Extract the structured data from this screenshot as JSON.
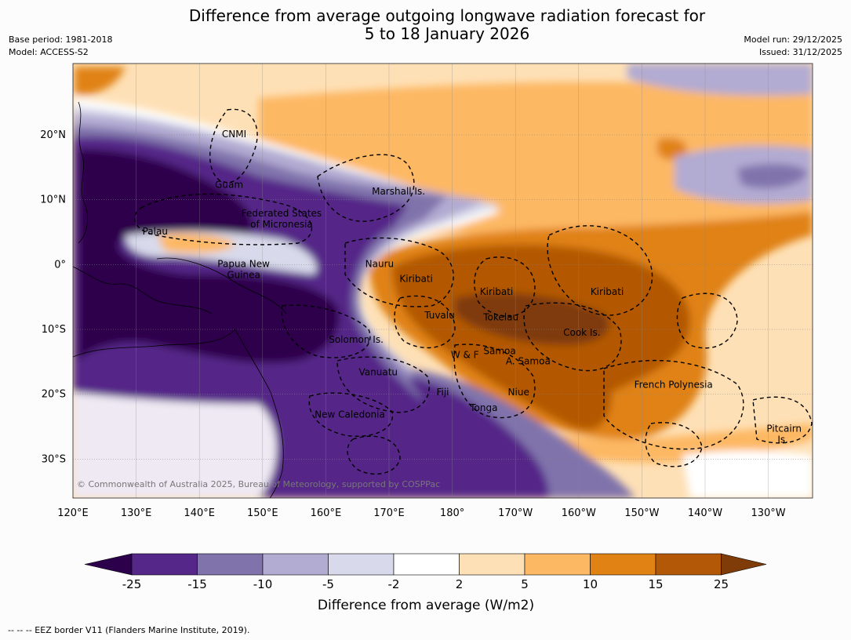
{
  "header": {
    "title_line1": "Difference from average outgoing longwave radiation forecast for",
    "title_line2": "5 to 18 January 2026",
    "base_period": "Base period: 1981-2018",
    "model": "Model: ACCESS-S2",
    "model_run": "Model run: 29/12/2025",
    "issued": "Issued: 31/12/2025"
  },
  "map": {
    "lon_range": [
      120,
      237
    ],
    "lat_range": [
      -36,
      31
    ],
    "lon_ticks": [
      {
        "lon": 120,
        "label": "120°E"
      },
      {
        "lon": 130,
        "label": "130°E"
      },
      {
        "lon": 140,
        "label": "140°E"
      },
      {
        "lon": 150,
        "label": "150°E"
      },
      {
        "lon": 160,
        "label": "160°E"
      },
      {
        "lon": 170,
        "label": "170°E"
      },
      {
        "lon": 180,
        "label": "180°"
      },
      {
        "lon": 190,
        "label": "170°W"
      },
      {
        "lon": 200,
        "label": "160°W"
      },
      {
        "lon": 210,
        "label": "150°W"
      },
      {
        "lon": 220,
        "label": "140°W"
      },
      {
        "lon": 230,
        "label": "130°W"
      }
    ],
    "lat_ticks": [
      {
        "lat": 20,
        "label": "20°N"
      },
      {
        "lat": 10,
        "label": "10°N"
      },
      {
        "lat": 0,
        "label": "0°"
      },
      {
        "lat": -10,
        "label": "10°S"
      },
      {
        "lat": -20,
        "label": "20°S"
      },
      {
        "lat": -30,
        "label": "30°S"
      }
    ],
    "regions": [
      {
        "name": "CNMI",
        "lon": 145.5,
        "lat": 20.1
      },
      {
        "name": "Guam",
        "lon": 144.7,
        "lat": 12.3
      },
      {
        "name": "Federated States",
        "lon": 153,
        "lat": 7.9
      },
      {
        "name": "of Micronesia",
        "lon": 153,
        "lat": 6.2
      },
      {
        "name": "Palau",
        "lon": 133,
        "lat": 5.1
      },
      {
        "name": "Marshall Is.",
        "lon": 171.5,
        "lat": 11.3
      },
      {
        "name": "Nauru",
        "lon": 168.5,
        "lat": 0.1
      },
      {
        "name": "Papua New",
        "lon": 147,
        "lat": 0.1
      },
      {
        "name": "Guinea",
        "lon": 147,
        "lat": -1.6
      },
      {
        "name": "Kiribati",
        "lon": 174.3,
        "lat": -2.2
      },
      {
        "name": "Kiribati",
        "lon": 187,
        "lat": -4.2
      },
      {
        "name": "Kiribati",
        "lon": 204.5,
        "lat": -4.2
      },
      {
        "name": "Tuvalu",
        "lon": 178,
        "lat": -7.8
      },
      {
        "name": "Tokelau",
        "lon": 187.7,
        "lat": -8.1
      },
      {
        "name": "Cook Is.",
        "lon": 200.5,
        "lat": -10.5
      },
      {
        "name": "Solomon Is.",
        "lon": 164.8,
        "lat": -11.6
      },
      {
        "name": "Samoa",
        "lon": 187.5,
        "lat": -13.3
      },
      {
        "name": "W & F",
        "lon": 182,
        "lat": -13.9
      },
      {
        "name": "A. Samoa",
        "lon": 192,
        "lat": -14.9
      },
      {
        "name": "Vanuatu",
        "lon": 168.3,
        "lat": -16.6
      },
      {
        "name": "French Polynesia",
        "lon": 215,
        "lat": -18.5
      },
      {
        "name": "Fiji",
        "lon": 178.5,
        "lat": -19.7
      },
      {
        "name": "Niue",
        "lon": 190.5,
        "lat": -19.7
      },
      {
        "name": "Tonga",
        "lon": 185,
        "lat": -22.1
      },
      {
        "name": "New Caledonia",
        "lon": 163.8,
        "lat": -23.1
      },
      {
        "name": "Pitcairn",
        "lon": 232.5,
        "lat": -25.3
      },
      {
        "name": "Is.",
        "lon": 232.3,
        "lat": -27
      }
    ],
    "copyright": "© Commonwealth of Australia 2025, Bureau of Meteorology, supported by COSPPac"
  },
  "colorbar": {
    "title": "Difference from average (W/m2)",
    "labels": [
      "-25",
      "-15",
      "-10",
      "-5",
      "-2",
      "2",
      "5",
      "10",
      "15",
      "25"
    ],
    "colors": {
      "lt_neg25": "#2d004b",
      "neg25_neg15": "#542788",
      "neg15_neg10": "#8073ac",
      "neg10_neg5": "#b2abd2",
      "neg5_neg2": "#d8daeb",
      "neg2_2": "#ffffff",
      "p2_5": "#fee0b6",
      "p5_10": "#fdb863",
      "p10_15": "#e08214",
      "p15_25": "#b35806",
      "gt_25": "#7f3b08"
    }
  },
  "footer": {
    "legend_text": "-- -- -- EEZ border V11 (Flanders Marine Institute, 2019)."
  }
}
